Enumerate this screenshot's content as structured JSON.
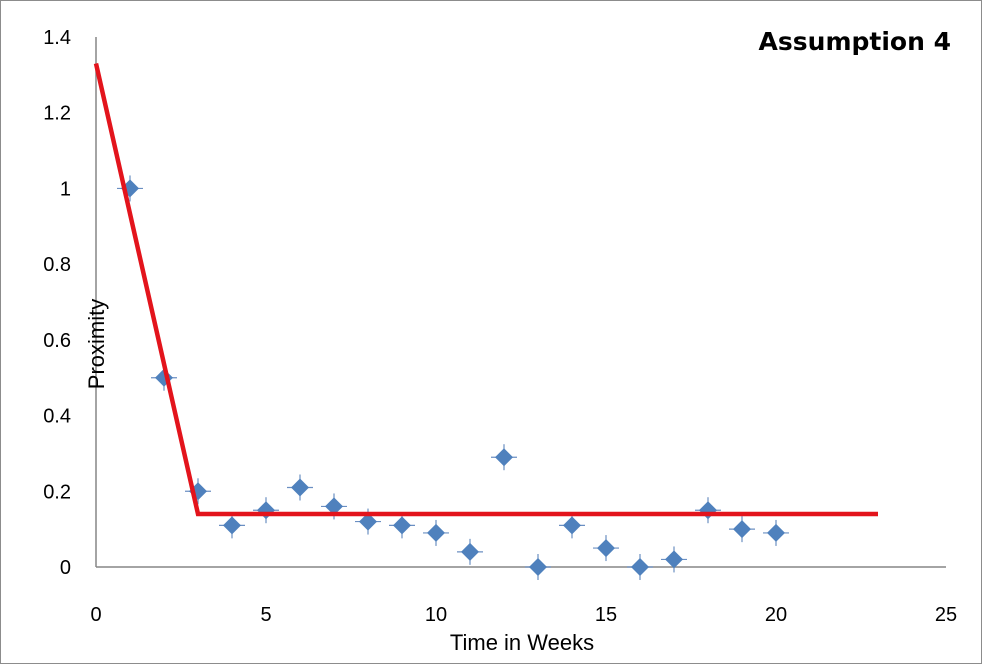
{
  "chart_data": {
    "type": "scatter",
    "title": "Assumption 4",
    "xlabel": "Time in Weeks",
    "ylabel": "Proximity",
    "xlim": [
      0,
      25
    ],
    "ylim": [
      0,
      1.4
    ],
    "xticks": [
      0,
      5,
      10,
      15,
      20,
      25
    ],
    "yticks": [
      0,
      0.2,
      0.4,
      0.6,
      0.8,
      1,
      1.2,
      1.4
    ],
    "xtick_labels": [
      "0",
      "5",
      "10",
      "15",
      "20",
      "25"
    ],
    "ytick_labels": [
      "0",
      "0.2",
      "0.4",
      "0.6",
      "0.8",
      "1",
      "1.2",
      "1.4"
    ],
    "grid": false,
    "series": [
      {
        "type": "scatter",
        "marker": "diamond",
        "color": "#4f81bd",
        "x": [
          1,
          2,
          3,
          4,
          5,
          6,
          7,
          8,
          9,
          10,
          11,
          12,
          13,
          14,
          15,
          16,
          17,
          18,
          19,
          20
        ],
        "y": [
          1.0,
          0.5,
          0.2,
          0.11,
          0.15,
          0.21,
          0.16,
          0.12,
          0.11,
          0.09,
          0.04,
          0.29,
          0.0,
          0.11,
          0.05,
          0.0,
          0.02,
          0.15,
          0.1,
          0.09
        ]
      },
      {
        "type": "line",
        "color": "#e3141c",
        "x": [
          0,
          3,
          23
        ],
        "y": [
          1.33,
          0.14,
          0.14
        ]
      }
    ]
  }
}
